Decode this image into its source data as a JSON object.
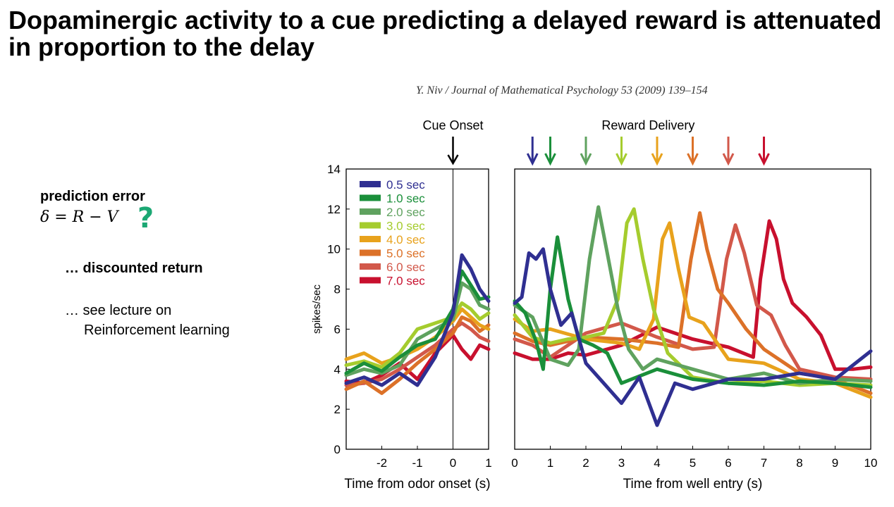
{
  "slide": {
    "title": "Dopaminergic activity to a cue predicting a delayed reward is attenuated in proportion to the delay",
    "citation": "Y. Niv / Journal of Mathematical Psychology 53 (2009) 139–154",
    "prediction_error_label": "prediction error",
    "prediction_error_equation": "δ = R − V",
    "question_mark": "?",
    "discounted_return": "… discounted return",
    "lecture_line1": "… see lecture on",
    "lecture_line2": "Reinforcement learning"
  },
  "chart_data": {
    "type": "line",
    "ylabel": "spikes/sec",
    "ylim": [
      0,
      14
    ],
    "yticks": [
      0,
      2,
      4,
      6,
      8,
      10,
      12,
      14
    ],
    "annotation_cue": "Cue Onset",
    "annotation_reward": "Reward Delivery",
    "series_colors": [
      "#2f2f91",
      "#1a8f3a",
      "#5fa25f",
      "#a5cc2e",
      "#e8a21c",
      "#dc7128",
      "#d2584a",
      "#c8102e"
    ],
    "legend": [
      "0.5 sec",
      "1.0 sec",
      "2.0 sec",
      "3.0 sec",
      "4.0 sec",
      "5.0 sec",
      "6.0 sec",
      "7.0 sec"
    ],
    "panels": [
      {
        "xlabel": "Time from odor onset (s)",
        "xlim": [
          -3,
          1
        ],
        "xticks": [
          -2,
          -1,
          0,
          1
        ],
        "cue_time": 0,
        "x": [
          -3.0,
          -2.5,
          -2.0,
          -1.5,
          -1.0,
          -0.5,
          0.0,
          0.25,
          0.5,
          0.75,
          1.0
        ],
        "series": [
          {
            "values": [
              3.3,
              3.6,
              3.2,
              3.8,
              3.2,
              4.6,
              6.8,
              9.7,
              9.0,
              8.0,
              7.4
            ]
          },
          {
            "values": [
              3.8,
              4.3,
              3.9,
              4.6,
              5.2,
              5.5,
              7.0,
              8.9,
              8.2,
              7.5,
              7.6
            ]
          },
          {
            "values": [
              3.7,
              4.0,
              3.8,
              4.2,
              5.5,
              6.0,
              6.5,
              8.3,
              8.0,
              7.2,
              7.0
            ]
          },
          {
            "values": [
              4.2,
              4.4,
              4.1,
              4.8,
              6.0,
              6.3,
              6.6,
              7.3,
              7.0,
              6.5,
              6.8
            ]
          },
          {
            "values": [
              4.5,
              4.8,
              4.3,
              4.6,
              5.0,
              5.6,
              6.4,
              7.0,
              6.6,
              6.2,
              6.0
            ]
          },
          {
            "values": [
              3.0,
              3.4,
              2.8,
              3.5,
              4.3,
              5.0,
              5.8,
              6.6,
              6.4,
              5.9,
              6.2
            ]
          },
          {
            "values": [
              3.2,
              3.3,
              3.5,
              4.0,
              4.6,
              5.2,
              6.0,
              6.3,
              6.0,
              5.6,
              5.4
            ]
          },
          {
            "values": [
              3.4,
              3.3,
              3.7,
              4.3,
              3.5,
              4.8,
              5.7,
              5.0,
              4.5,
              5.2,
              5.0
            ]
          }
        ]
      },
      {
        "xlabel": "Time from well entry (s)",
        "xlim": [
          0,
          10
        ],
        "xticks": [
          0,
          1,
          2,
          3,
          4,
          5,
          6,
          7,
          8,
          9,
          10
        ],
        "reward_times": [
          0.5,
          1.0,
          2.0,
          3.0,
          4.0,
          5.0,
          6.0,
          7.0
        ],
        "series": [
          {
            "x": [
              0,
              0.2,
              0.4,
              0.6,
              0.8,
              1.0,
              1.3,
              1.6,
              2.0,
              2.5,
              3.0,
              3.5,
              4.0,
              4.5,
              5.0,
              6.0,
              7.0,
              8.0,
              9.0,
              10.0
            ],
            "values": [
              7.3,
              7.6,
              9.8,
              9.5,
              10.0,
              8.0,
              6.2,
              6.8,
              4.3,
              3.3,
              2.3,
              3.6,
              1.2,
              3.3,
              3.0,
              3.5,
              3.5,
              3.8,
              3.5,
              4.9
            ]
          },
          {
            "x": [
              0,
              0.3,
              0.6,
              0.8,
              1.0,
              1.2,
              1.5,
              1.8,
              2.2,
              2.6,
              3.0,
              4.0,
              5.0,
              6.0,
              7.0,
              8.0,
              9.0,
              10.0
            ],
            "values": [
              7.4,
              6.8,
              5.4,
              4.0,
              8.0,
              10.6,
              7.5,
              5.5,
              5.2,
              4.8,
              3.3,
              4.0,
              3.5,
              3.3,
              3.2,
              3.4,
              3.3,
              3.1
            ]
          },
          {
            "x": [
              0,
              0.5,
              1.0,
              1.5,
              1.8,
              2.1,
              2.35,
              2.6,
              2.9,
              3.2,
              3.6,
              4.0,
              5.0,
              6.0,
              7.0,
              8.0,
              9.0,
              10.0
            ],
            "values": [
              7.2,
              6.6,
              4.5,
              4.2,
              5.0,
              9.5,
              12.1,
              9.8,
              7.0,
              5.0,
              4.0,
              4.5,
              4.0,
              3.5,
              3.8,
              3.3,
              3.5,
              3.4
            ]
          },
          {
            "x": [
              0,
              0.5,
              1.0,
              1.5,
              2.0,
              2.5,
              2.9,
              3.15,
              3.35,
              3.6,
              3.9,
              4.3,
              5.0,
              6.0,
              7.0,
              8.0,
              9.0,
              10.0
            ],
            "values": [
              6.7,
              5.6,
              5.3,
              5.5,
              5.6,
              5.8,
              7.5,
              11.3,
              12.0,
              9.5,
              7.0,
              4.8,
              3.6,
              3.3,
              3.4,
              3.2,
              3.3,
              3.2
            ]
          },
          {
            "x": [
              0,
              0.5,
              1.0,
              2.0,
              3.0,
              3.5,
              3.9,
              4.15,
              4.35,
              4.6,
              4.9,
              5.3,
              6.0,
              7.0,
              8.0,
              9.0,
              10.0
            ],
            "values": [
              6.5,
              5.9,
              6.0,
              5.5,
              5.3,
              5.0,
              6.5,
              10.5,
              11.3,
              9.0,
              6.6,
              6.3,
              4.5,
              4.3,
              3.5,
              3.3,
              2.6
            ]
          },
          {
            "x": [
              0,
              0.5,
              1.0,
              2.0,
              3.0,
              4.0,
              4.6,
              4.95,
              5.2,
              5.4,
              5.7,
              6.0,
              6.5,
              7.0,
              8.0,
              9.0,
              10.0
            ],
            "values": [
              5.8,
              5.4,
              5.2,
              5.6,
              5.5,
              5.3,
              5.1,
              9.5,
              11.8,
              10.0,
              8.0,
              7.3,
              6.0,
              5.0,
              3.8,
              3.5,
              2.8
            ]
          },
          {
            "x": [
              0,
              0.5,
              1.0,
              2.0,
              3.0,
              4.0,
              5.0,
              5.6,
              5.95,
              6.2,
              6.45,
              6.8,
              7.2,
              7.6,
              8.0,
              9.0,
              10.0
            ],
            "values": [
              5.5,
              5.2,
              4.6,
              5.8,
              6.3,
              5.6,
              5.0,
              5.1,
              9.5,
              11.2,
              9.8,
              7.2,
              6.7,
              5.2,
              4.0,
              3.6,
              3.5
            ]
          },
          {
            "x": [
              0,
              0.5,
              1.0,
              1.5,
              2.0,
              3.0,
              4.0,
              5.0,
              6.0,
              6.7,
              6.9,
              7.15,
              7.35,
              7.55,
              7.8,
              8.2,
              8.6,
              9.0,
              9.5,
              10.0
            ],
            "values": [
              4.8,
              4.5,
              4.5,
              4.8,
              4.7,
              5.2,
              6.1,
              5.5,
              5.1,
              4.6,
              8.5,
              11.4,
              10.5,
              8.5,
              7.3,
              6.6,
              5.7,
              4.0,
              4.0,
              4.1
            ]
          }
        ]
      }
    ]
  }
}
